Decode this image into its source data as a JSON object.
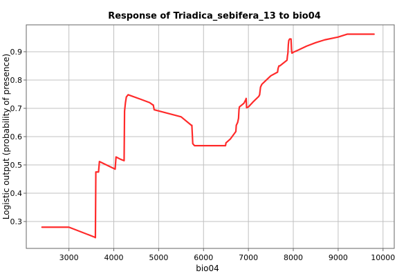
{
  "chart_data": {
    "type": "line",
    "title": "Response of Triadica_sebifera_13 to bio04",
    "xlabel": "bio04",
    "ylabel": "Logistic output (probability of presence)",
    "xlim": [
      2050,
      10250
    ],
    "ylim": [
      0.205,
      0.995
    ],
    "xticks": [
      3000,
      4000,
      5000,
      6000,
      7000,
      8000,
      9000,
      10000
    ],
    "yticks": [
      0.3,
      0.4,
      0.5,
      0.6,
      0.7,
      0.8,
      0.9
    ],
    "grid": true,
    "series": [
      {
        "color": "#ff2a2a",
        "x": [
          2400,
          3000,
          3570,
          3590,
          3600,
          3650,
          3660,
          3680,
          4030,
          4050,
          4150,
          4230,
          4240,
          4260,
          4280,
          4320,
          4600,
          4800,
          4870,
          4880,
          4900,
          5500,
          5730,
          5740,
          5760,
          5800,
          5900,
          6000,
          6200,
          6400,
          6490,
          6500,
          6600,
          6720,
          6730,
          6760,
          6780,
          6790,
          6800,
          6900,
          6940,
          6950,
          6960,
          7000,
          7100,
          7230,
          7250,
          7270,
          7300,
          7400,
          7500,
          7650,
          7660,
          7680,
          7700,
          7860,
          7870,
          7880,
          7890,
          7900,
          7920,
          7950,
          7960,
          7970,
          8000,
          8100,
          8300,
          8500,
          8700,
          9000,
          9200,
          9500,
          9800
        ],
        "y": [
          0.28,
          0.28,
          0.245,
          0.243,
          0.475,
          0.475,
          0.475,
          0.512,
          0.485,
          0.528,
          0.52,
          0.515,
          0.69,
          0.72,
          0.74,
          0.748,
          0.732,
          0.72,
          0.712,
          0.712,
          0.695,
          0.67,
          0.64,
          0.64,
          0.575,
          0.568,
          0.568,
          0.568,
          0.568,
          0.568,
          0.568,
          0.578,
          0.592,
          0.618,
          0.64,
          0.65,
          0.665,
          0.695,
          0.705,
          0.718,
          0.73,
          0.735,
          0.702,
          0.705,
          0.722,
          0.742,
          0.748,
          0.775,
          0.785,
          0.8,
          0.815,
          0.828,
          0.84,
          0.85,
          0.85,
          0.87,
          0.885,
          0.895,
          0.925,
          0.94,
          0.945,
          0.945,
          0.908,
          0.895,
          0.898,
          0.905,
          0.92,
          0.932,
          0.942,
          0.952,
          0.962,
          0.962,
          0.962
        ]
      }
    ]
  }
}
